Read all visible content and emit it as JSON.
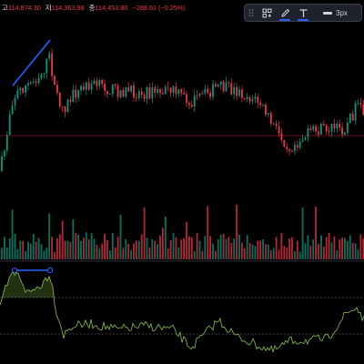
{
  "ohlc_legend": {
    "open_label": "고",
    "open_value": "114,874.30",
    "low_label": "저",
    "low_value": "114,363.98",
    "close_label": "종",
    "close_value": "114,453.80",
    "change_value": "−288.61 (−0.25%)"
  },
  "drawing_toolbar": {
    "items": [
      {
        "name": "object-tree-icon"
      },
      {
        "name": "pencil-icon",
        "active": true
      },
      {
        "name": "text-icon",
        "active": true
      }
    ],
    "line_width_label": "3px"
  },
  "colors": {
    "up": "#089981",
    "down": "#f23645",
    "trendline": "#2962ff",
    "oscillator": "#8bc34a",
    "level_line": "#f23645"
  }
}
